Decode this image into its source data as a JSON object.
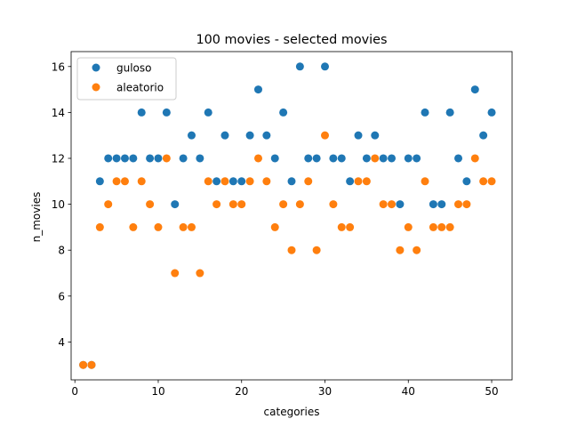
{
  "chart_data": {
    "type": "scatter",
    "title": "100 movies - selected movies",
    "xlabel": "categories",
    "ylabel": "n_movies",
    "xlim": [
      -0.45,
      52.45
    ],
    "ylim": [
      2.35,
      16.65
    ],
    "xticks": [
      0,
      10,
      20,
      30,
      40,
      50
    ],
    "yticks": [
      4,
      6,
      8,
      10,
      12,
      14,
      16
    ],
    "grid": false,
    "legend_position": "top-left",
    "series": [
      {
        "name": "guloso",
        "color": "#1f77b4",
        "x": [
          1,
          2,
          3,
          4,
          5,
          6,
          7,
          8,
          9,
          10,
          11,
          12,
          13,
          14,
          15,
          16,
          17,
          18,
          19,
          20,
          21,
          22,
          23,
          24,
          25,
          26,
          27,
          28,
          29,
          30,
          31,
          32,
          33,
          34,
          35,
          36,
          37,
          38,
          39,
          40,
          41,
          42,
          43,
          44,
          45,
          46,
          47,
          48,
          49,
          50
        ],
        "y": [
          3,
          3,
          11,
          12,
          12,
          12,
          12,
          14,
          12,
          12,
          14,
          10,
          12,
          13,
          12,
          14,
          11,
          13,
          11,
          11,
          13,
          15,
          13,
          12,
          14,
          11,
          16,
          12,
          12,
          16,
          12,
          12,
          11,
          13,
          12,
          13,
          12,
          12,
          10,
          12,
          12,
          14,
          10,
          10,
          14,
          12,
          11,
          15,
          13,
          14
        ]
      },
      {
        "name": "aleatorio",
        "color": "#ff7f0e",
        "x": [
          1,
          2,
          3,
          4,
          5,
          6,
          7,
          8,
          9,
          10,
          11,
          12,
          13,
          14,
          15,
          16,
          17,
          18,
          19,
          20,
          21,
          22,
          23,
          24,
          25,
          26,
          27,
          28,
          29,
          30,
          31,
          32,
          33,
          34,
          35,
          36,
          37,
          38,
          39,
          40,
          41,
          42,
          43,
          44,
          45,
          46,
          47,
          48,
          49,
          50
        ],
        "y": [
          3,
          3,
          9,
          10,
          11,
          11,
          9,
          11,
          10,
          9,
          12,
          7,
          9,
          9,
          7,
          11,
          10,
          11,
          10,
          10,
          11,
          12,
          11,
          9,
          10,
          8,
          10,
          11,
          8,
          13,
          10,
          9,
          9,
          11,
          11,
          12,
          10,
          10,
          8,
          9,
          8,
          11,
          9,
          9,
          9,
          10,
          10,
          12,
          11,
          11
        ]
      }
    ]
  }
}
